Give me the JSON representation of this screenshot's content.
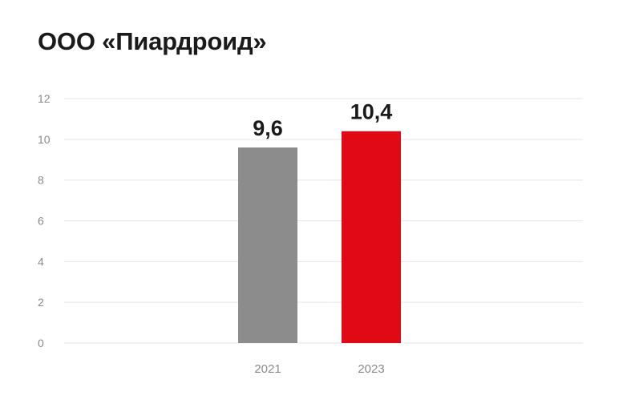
{
  "title": "ООО «Пиардроид»",
  "chart_data": {
    "type": "bar",
    "categories": [
      "2021",
      "2023"
    ],
    "values": [
      9.6,
      10.4
    ],
    "data_labels": [
      "9,6",
      "10,4"
    ],
    "bar_colors": [
      "#8c8c8c",
      "#e10916"
    ],
    "ylim": [
      0,
      12
    ],
    "yticks": [
      0,
      2,
      4,
      6,
      8,
      10,
      12
    ],
    "grid": true,
    "title": "ООО «Пиардроид»",
    "xlabel": "",
    "ylabel": ""
  }
}
